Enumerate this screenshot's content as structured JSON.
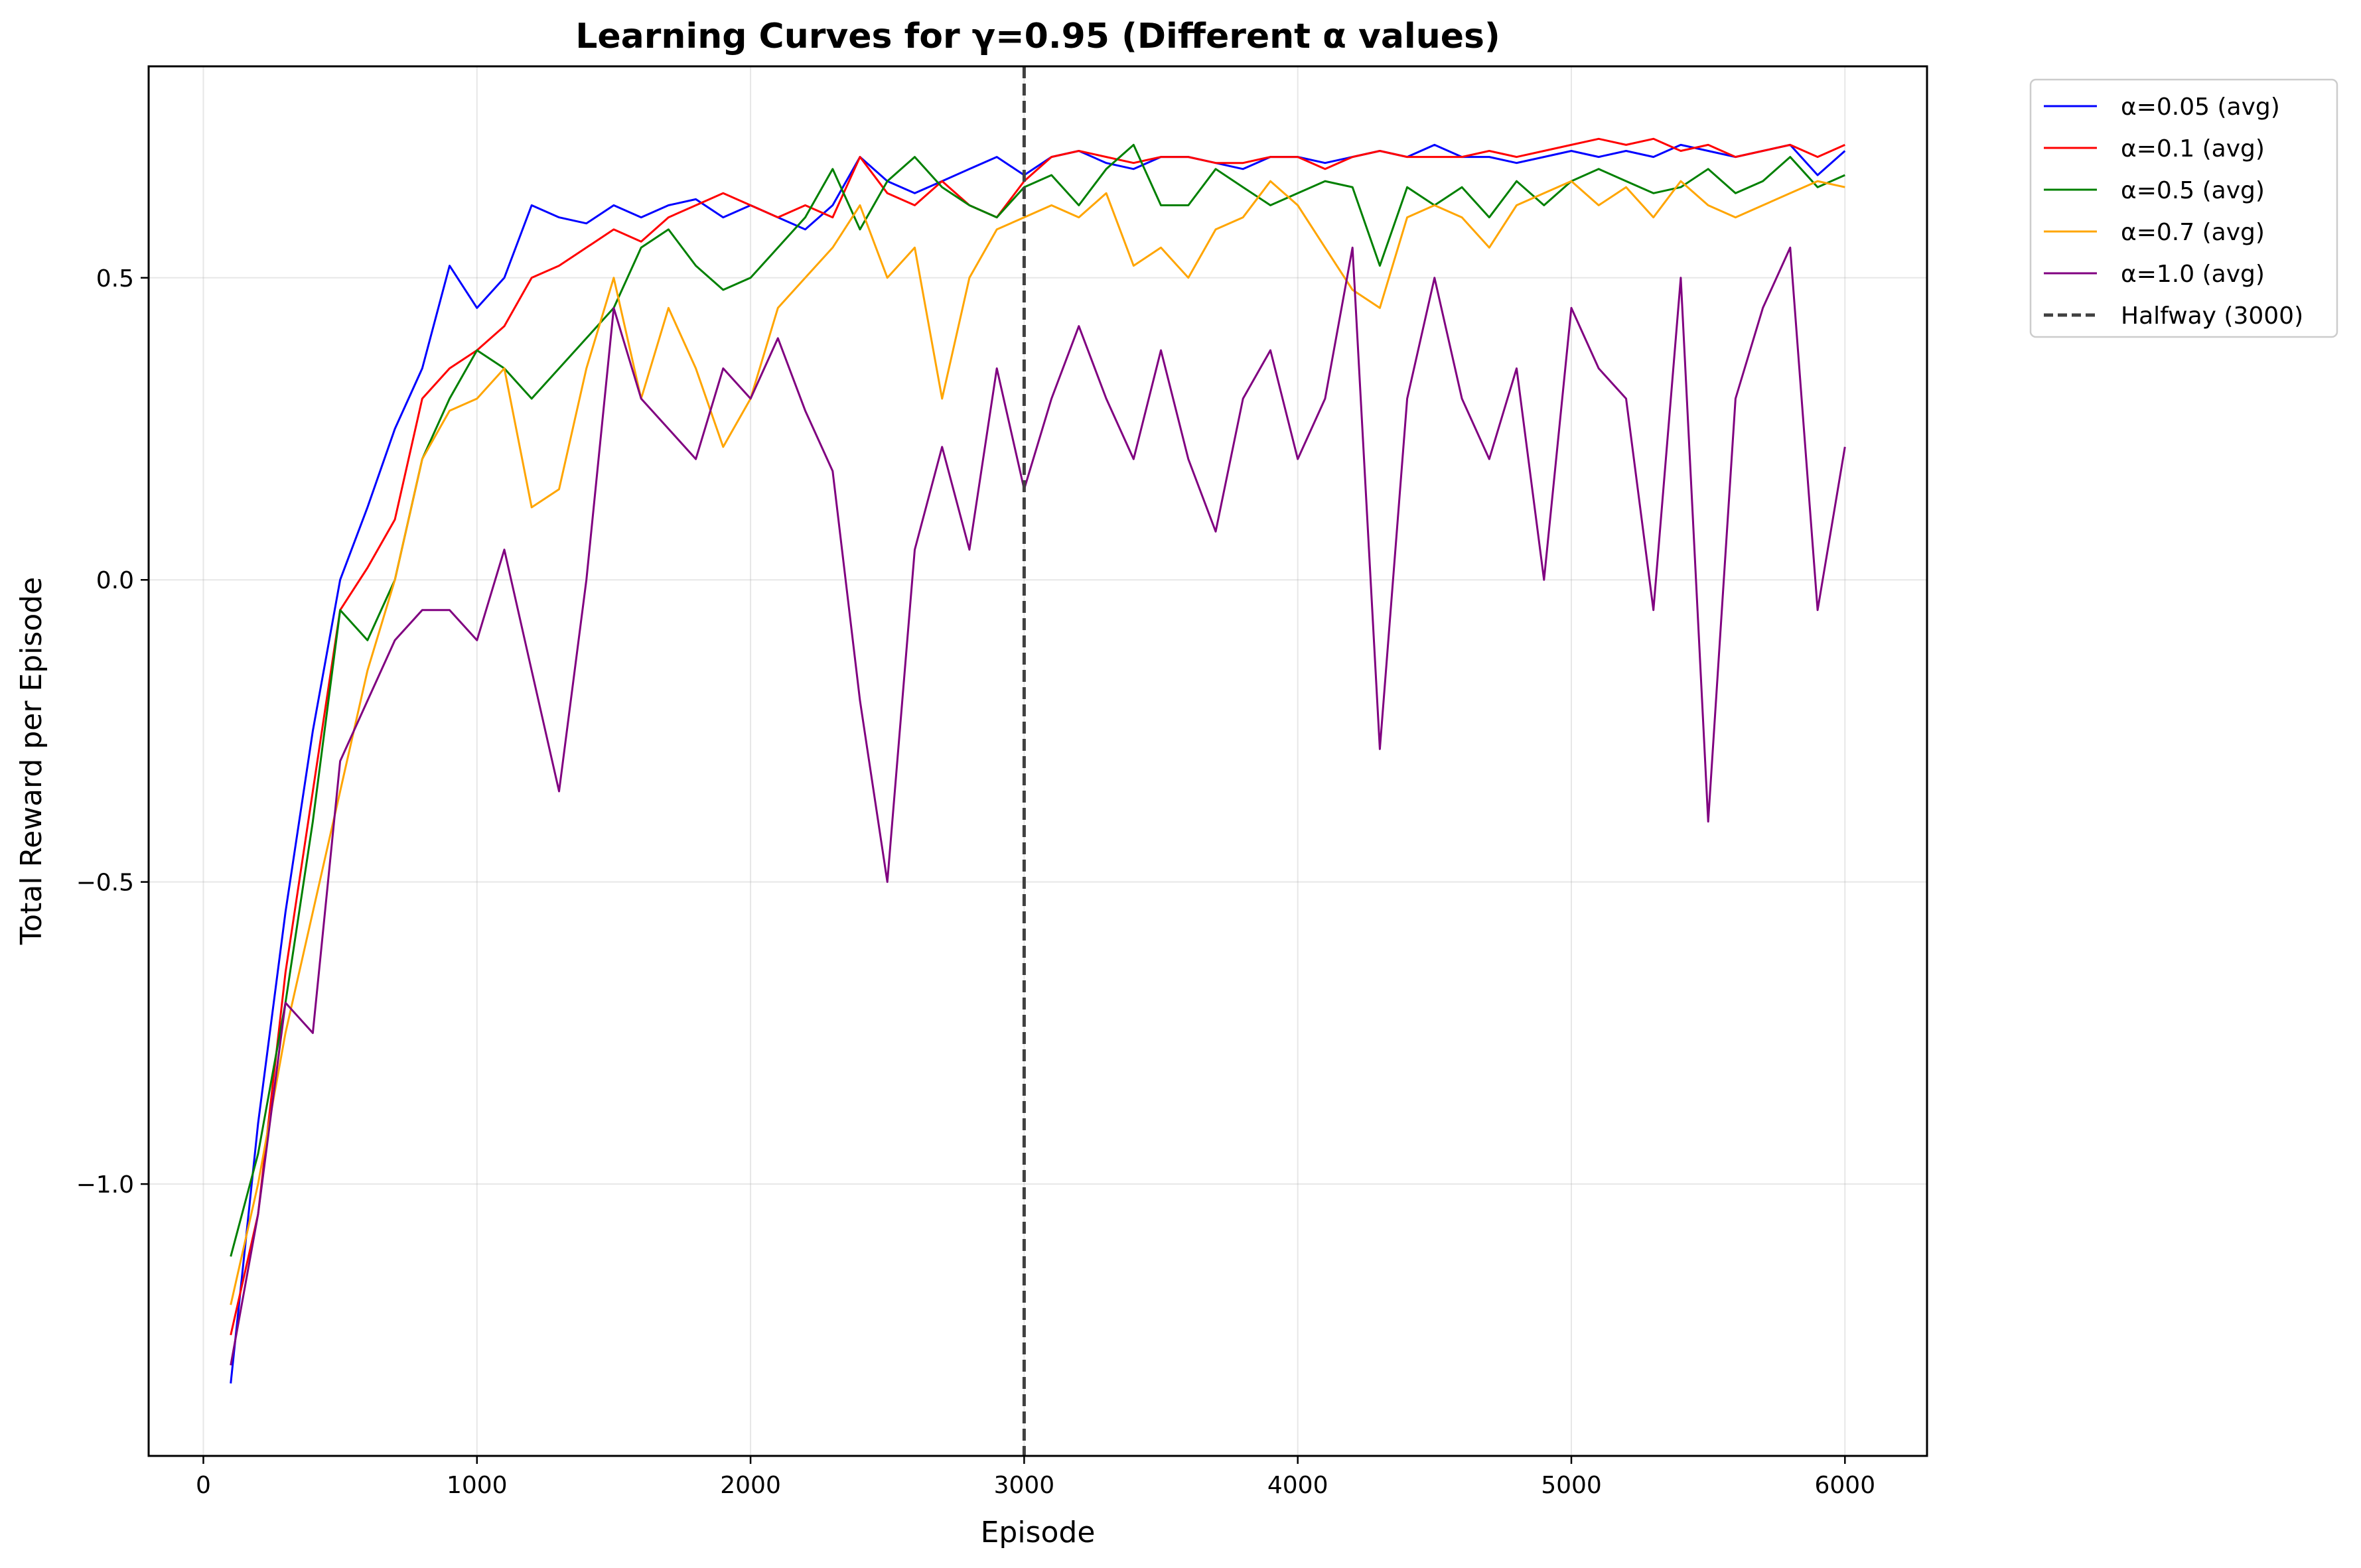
{
  "chart_data": {
    "type": "line",
    "title": "Learning Curves for γ=0.95 (Different α values)",
    "xlabel": "Episode",
    "ylabel": "Total Reward per Episode",
    "xlim": [
      -200,
      6300
    ],
    "ylim": [
      -1.45,
      0.85
    ],
    "xticks": [
      0,
      1000,
      2000,
      3000,
      4000,
      5000,
      6000
    ],
    "xtick_labels": [
      "0",
      "1000",
      "2000",
      "3000",
      "4000",
      "5000",
      "6000"
    ],
    "yticks": [
      -1.0,
      -0.5,
      0.0,
      0.5
    ],
    "ytick_labels": [
      "−1.0",
      "−0.5",
      "0.0",
      "0.5"
    ],
    "grid": true,
    "legend_position": "outside-top-right",
    "x": [
      100,
      200,
      300,
      400,
      500,
      600,
      700,
      800,
      900,
      1000,
      1100,
      1200,
      1300,
      1400,
      1500,
      1600,
      1700,
      1800,
      1900,
      2000,
      2100,
      2200,
      2300,
      2400,
      2500,
      2600,
      2700,
      2800,
      2900,
      3000,
      3100,
      3200,
      3300,
      3400,
      3500,
      3600,
      3700,
      3800,
      3900,
      4000,
      4100,
      4200,
      4300,
      4400,
      4500,
      4600,
      4700,
      4800,
      4900,
      5000,
      5100,
      5200,
      5300,
      5400,
      5500,
      5600,
      5700,
      5800,
      5900,
      6000
    ],
    "series": [
      {
        "name": "α=0.05 (avg)",
        "color": "#0000ff",
        "values": [
          -1.33,
          -0.9,
          -0.55,
          -0.25,
          0.0,
          0.12,
          0.25,
          0.35,
          0.52,
          0.45,
          0.5,
          0.62,
          0.6,
          0.59,
          0.62,
          0.6,
          0.62,
          0.63,
          0.6,
          0.62,
          0.6,
          0.58,
          0.62,
          0.7,
          0.66,
          0.64,
          0.66,
          0.68,
          0.7,
          0.67,
          0.7,
          0.71,
          0.69,
          0.68,
          0.7,
          0.7,
          0.69,
          0.68,
          0.7,
          0.7,
          0.69,
          0.7,
          0.71,
          0.7,
          0.72,
          0.7,
          0.7,
          0.69,
          0.7,
          0.71,
          0.7,
          0.71,
          0.7,
          0.72,
          0.71,
          0.7,
          0.71,
          0.72,
          0.67,
          0.71
        ]
      },
      {
        "name": "α=0.1 (avg)",
        "color": "#ff0000",
        "values": [
          -1.25,
          -1.05,
          -0.65,
          -0.35,
          -0.05,
          0.02,
          0.1,
          0.3,
          0.35,
          0.38,
          0.42,
          0.5,
          0.52,
          0.55,
          0.58,
          0.56,
          0.6,
          0.62,
          0.64,
          0.62,
          0.6,
          0.62,
          0.6,
          0.7,
          0.64,
          0.62,
          0.66,
          0.62,
          0.6,
          0.66,
          0.7,
          0.71,
          0.7,
          0.69,
          0.7,
          0.7,
          0.69,
          0.69,
          0.7,
          0.7,
          0.68,
          0.7,
          0.71,
          0.7,
          0.7,
          0.7,
          0.71,
          0.7,
          0.71,
          0.72,
          0.73,
          0.72,
          0.73,
          0.71,
          0.72,
          0.7,
          0.71,
          0.72,
          0.7,
          0.72
        ]
      },
      {
        "name": "α=0.5 (avg)",
        "color": "#008000",
        "values": [
          -1.12,
          -0.95,
          -0.7,
          -0.4,
          -0.05,
          -0.1,
          0.0,
          0.2,
          0.3,
          0.38,
          0.35,
          0.3,
          0.35,
          0.4,
          0.45,
          0.55,
          0.58,
          0.52,
          0.48,
          0.5,
          0.55,
          0.6,
          0.68,
          0.58,
          0.66,
          0.7,
          0.65,
          0.62,
          0.6,
          0.65,
          0.67,
          0.62,
          0.68,
          0.72,
          0.62,
          0.62,
          0.68,
          0.65,
          0.62,
          0.64,
          0.66,
          0.65,
          0.52,
          0.65,
          0.62,
          0.65,
          0.6,
          0.66,
          0.62,
          0.66,
          0.68,
          0.66,
          0.64,
          0.65,
          0.68,
          0.64,
          0.66,
          0.7,
          0.65,
          0.67
        ]
      },
      {
        "name": "α=0.7 (avg)",
        "color": "#ffa500",
        "values": [
          -1.2,
          -1.0,
          -0.75,
          -0.55,
          -0.35,
          -0.15,
          0.0,
          0.2,
          0.28,
          0.3,
          0.35,
          0.12,
          0.15,
          0.35,
          0.5,
          0.3,
          0.45,
          0.35,
          0.22,
          0.3,
          0.45,
          0.5,
          0.55,
          0.62,
          0.5,
          0.55,
          0.3,
          0.5,
          0.58,
          0.6,
          0.62,
          0.6,
          0.64,
          0.52,
          0.55,
          0.5,
          0.58,
          0.6,
          0.66,
          0.62,
          0.55,
          0.48,
          0.45,
          0.6,
          0.62,
          0.6,
          0.55,
          0.62,
          0.64,
          0.66,
          0.62,
          0.65,
          0.6,
          0.66,
          0.62,
          0.6,
          0.62,
          0.64,
          0.66,
          0.65
        ]
      },
      {
        "name": "α=1.0 (avg)",
        "color": "#800080",
        "values": [
          -1.3,
          -1.05,
          -0.7,
          -0.75,
          -0.3,
          -0.2,
          -0.1,
          -0.05,
          -0.05,
          -0.1,
          0.05,
          -0.15,
          -0.35,
          0.0,
          0.45,
          0.3,
          0.25,
          0.2,
          0.35,
          0.3,
          0.4,
          0.28,
          0.18,
          -0.2,
          -0.5,
          0.05,
          0.22,
          0.05,
          0.35,
          0.15,
          0.3,
          0.42,
          0.3,
          0.2,
          0.38,
          0.2,
          0.08,
          0.3,
          0.38,
          0.2,
          0.3,
          0.55,
          -0.28,
          0.3,
          0.5,
          0.3,
          0.2,
          0.35,
          0.0,
          0.45,
          0.35,
          0.3,
          -0.05,
          0.5,
          -0.4,
          0.3,
          0.45,
          0.55,
          -0.05,
          0.22
        ]
      }
    ],
    "reference_line": {
      "x": 3000,
      "label": "Halfway (3000)",
      "color": "#404040",
      "style": "dashed"
    }
  }
}
